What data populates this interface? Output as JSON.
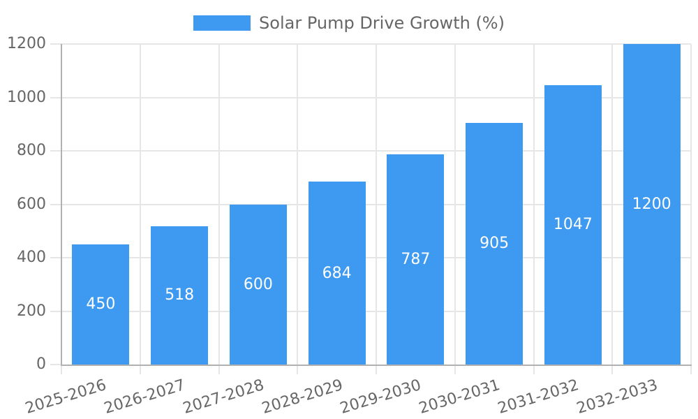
{
  "chart_data": {
    "type": "bar",
    "legend_label": "Solar Pump Drive Growth (%)",
    "legend_position": "top",
    "categories": [
      "2025-2026",
      "2026-2027",
      "2027-2028",
      "2028-2029",
      "2029-2030",
      "2030-2031",
      "2031-2032",
      "2032-2033"
    ],
    "series": [
      {
        "name": "Solar Pump Drive Growth (%)",
        "values": [
          450,
          518,
          600,
          684,
          787,
          905,
          1047,
          1200
        ]
      }
    ],
    "data_labels": [
      "450",
      "518",
      "600",
      "684",
      "787",
      "905",
      "1047",
      "1200"
    ],
    "ylim": [
      0,
      1200
    ],
    "yticks": [
      0,
      200,
      400,
      600,
      800,
      1000,
      1200
    ],
    "grid": true,
    "x_label_rotation_deg": -17,
    "colors": {
      "bar": "#3E99F0",
      "bar_label": "#FFFFFF",
      "tick_text": "#666666",
      "legend_text": "#666666",
      "grid": "#E6E6E6",
      "axis": "#B1B1B1",
      "background": "#FFFFFF"
    }
  }
}
